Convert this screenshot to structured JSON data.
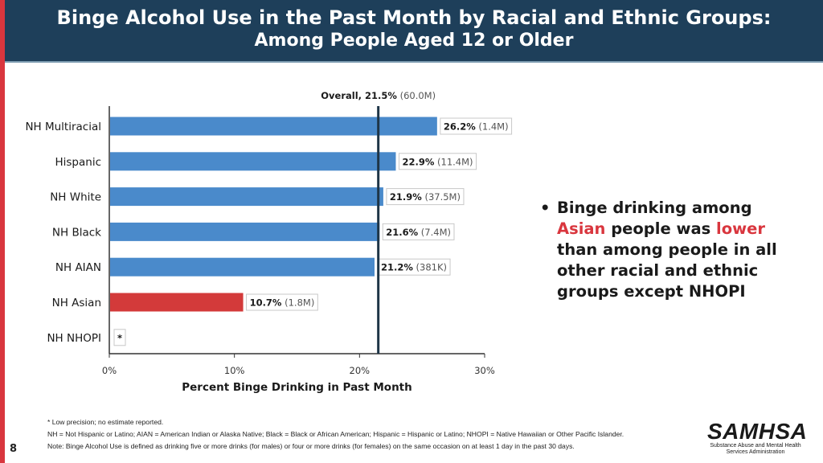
{
  "header": {
    "title_line1": "Binge Alcohol Use in the Past Month by Racial and Ethnic Groups:",
    "title_line2": "Among People Aged 12 or Older"
  },
  "chart_data": {
    "type": "bar",
    "orientation": "horizontal",
    "categories": [
      "NH Multiracial",
      "Hispanic",
      "NH White",
      "NH Black",
      "NH AIAN",
      "NH Asian",
      "NH NHOPI"
    ],
    "values": [
      26.2,
      22.9,
      21.9,
      21.6,
      21.2,
      10.7,
      null
    ],
    "counts": [
      "(1.4M)",
      "(11.4M)",
      "(37.5M)",
      "(7.4M)",
      "(381K)",
      "(1.8M)",
      ""
    ],
    "value_labels": [
      "26.2%",
      "22.9%",
      "21.9%",
      "21.6%",
      "21.2%",
      "10.7%",
      "*"
    ],
    "highlight_index": 5,
    "xlabel": "Percent Binge Drinking in Past Month",
    "xlim": [
      0,
      30
    ],
    "xticks": [
      0,
      10,
      20,
      30
    ],
    "xtick_labels": [
      "0%",
      "10%",
      "20%",
      "30%"
    ],
    "reference_line": {
      "value": 21.5,
      "label": "Overall, 21.5%",
      "count": "(60.0M)"
    },
    "colors": {
      "bar": "#4a8acb",
      "highlight": "#d33a3a",
      "reference": "#1e3547"
    }
  },
  "bullet": {
    "part1": "Binge drinking among ",
    "highlight1": "Asian",
    "part2": " people was ",
    "highlight2": "lower",
    "part3": " than among people in all other racial and ethnic groups except NHOPI"
  },
  "notes": {
    "line1": "* Low precision; no estimate reported.",
    "line2": "NH = Not Hispanic or Latino; AIAN = American Indian or Alaska Native; Black = Black or African American; Hispanic = Hispanic or Latino; NHOPI = Native Hawaiian or Other Pacific Islander.",
    "line3": "Note: Binge Alcohol Use is defined as drinking five or more drinks (for males) or four or more drinks (for females) on the same occasion on at least 1 day in the past 30 days."
  },
  "page_number": "8",
  "logo": {
    "name": "SAMHSA",
    "subtitle": "Substance Abuse and Mental Health Services Administration"
  }
}
